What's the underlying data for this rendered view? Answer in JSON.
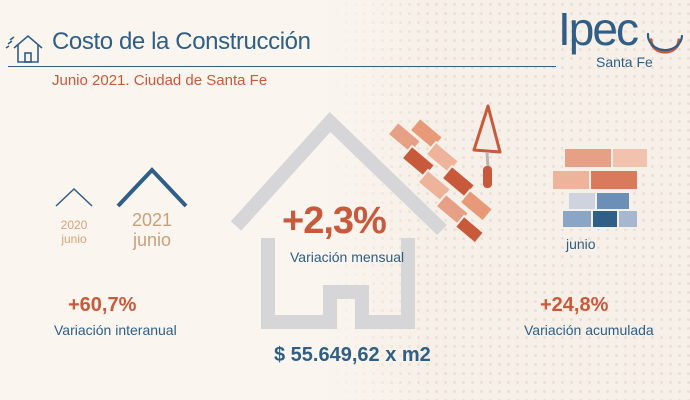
{
  "header": {
    "title": "Costo de la Construcción",
    "subtitle": "Junio 2021. Ciudad de Santa Fe"
  },
  "logo": {
    "word": "Ipec",
    "sub": "Santa Fe"
  },
  "years": {
    "prev_year": "2020",
    "prev_month": "junio",
    "curr_year": "2021",
    "curr_month": "junio"
  },
  "monthly": {
    "value": "+2,3%",
    "label": "Variación mensual"
  },
  "interannual": {
    "value": "+60,7%",
    "label": "Variación interanual"
  },
  "accumulated": {
    "value": "+24,8%",
    "label": "Variación acumulada",
    "month": "junio"
  },
  "price": {
    "value": "$ 55.649,62 x m2"
  },
  "colors": {
    "blue": "#2f5f86",
    "orange": "#c8593a",
    "brick": "#e8a48c",
    "light_gray": "#d6d5d8"
  },
  "icons": [
    "house-header-icon",
    "house-outline-icon",
    "bricks-icon",
    "trowel-icon",
    "brick-stack-icon"
  ]
}
